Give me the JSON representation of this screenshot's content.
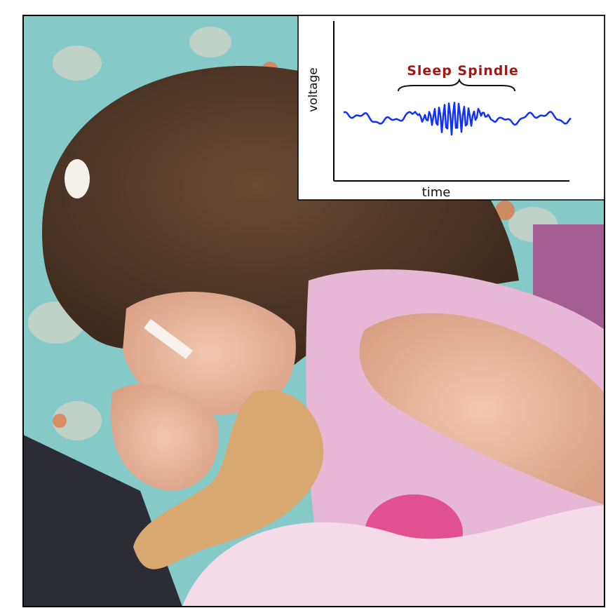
{
  "inset": {
    "title": "Sleep Spindle",
    "y_axis_label": "voltage",
    "x_axis_label": "time"
  }
}
